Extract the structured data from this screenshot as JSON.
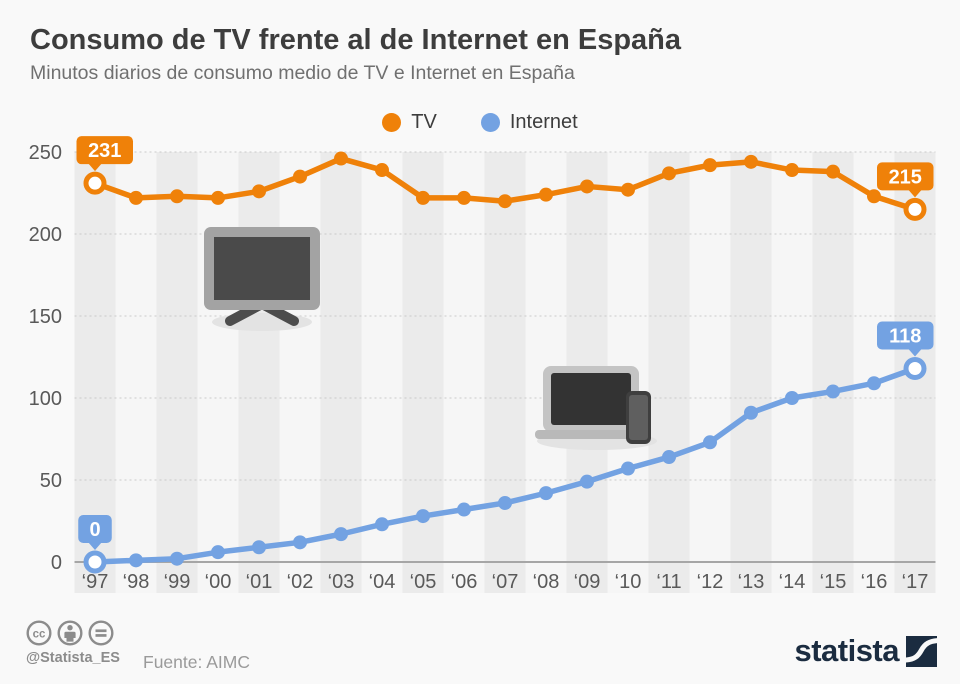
{
  "header": {
    "title": "Consumo de TV frente al de Internet en España",
    "subtitle": "Minutos diarios de consumo medio de TV e Internet en España"
  },
  "legend": [
    {
      "label": "TV",
      "color": "#ef8109"
    },
    {
      "label": "Internet",
      "color": "#73a2e2"
    }
  ],
  "chart_data": {
    "type": "line",
    "title": "Consumo de TV frente al de Internet en España",
    "subtitle": "Minutos diarios de consumo medio de TV e Internet en España",
    "xlabel": "",
    "ylabel": "",
    "x": [
      "‘97",
      "‘98",
      "‘99",
      "‘00",
      "‘01",
      "‘02",
      "‘03",
      "‘04",
      "‘05",
      "‘06",
      "‘07",
      "‘08",
      "‘09",
      "‘10",
      "‘11",
      "‘12",
      "‘13",
      "‘14",
      "‘15",
      "‘16",
      "‘17"
    ],
    "series": [
      {
        "name": "TV",
        "color": "#ef8109",
        "values": [
          231,
          222,
          223,
          222,
          226,
          235,
          246,
          239,
          222,
          222,
          220,
          224,
          229,
          227,
          237,
          242,
          244,
          239,
          238,
          223,
          215
        ]
      },
      {
        "name": "Internet",
        "color": "#73a2e2",
        "values": [
          0,
          1,
          2,
          6,
          9,
          12,
          17,
          23,
          28,
          32,
          36,
          42,
          49,
          57,
          64,
          73,
          91,
          100,
          104,
          109,
          118
        ]
      }
    ],
    "ylim": [
      0,
      250
    ],
    "yticks": [
      0,
      50,
      100,
      150,
      200,
      250
    ],
    "grid": "horizontal-dotted",
    "legend_position": "top-center",
    "annotations": [
      {
        "series": "TV",
        "x": "‘97",
        "label": "231"
      },
      {
        "series": "TV",
        "x": "‘17",
        "label": "215"
      },
      {
        "series": "Internet",
        "x": "‘97",
        "label": "0"
      },
      {
        "series": "Internet",
        "x": "‘17",
        "label": "118"
      }
    ]
  },
  "footer": {
    "handle": "@Statista_ES",
    "source": "Fuente: AIMC",
    "logo_text": "statista",
    "logo_color": "#1b2c40",
    "license_icons": [
      "cc-icon",
      "attribution-icon",
      "no-derivatives-icon"
    ]
  }
}
